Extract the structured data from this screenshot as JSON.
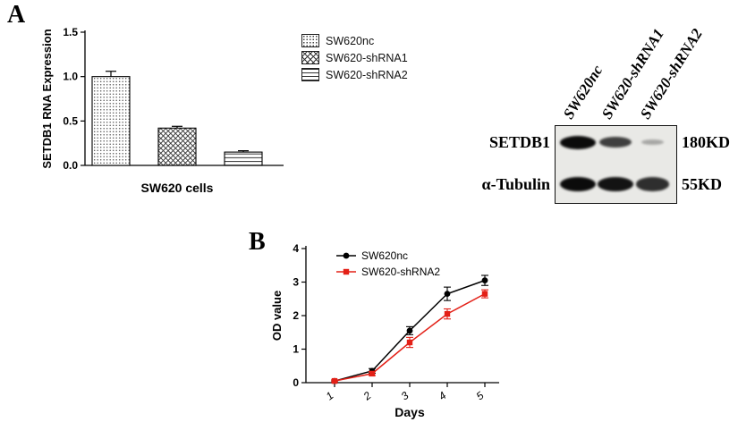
{
  "panels": {
    "a_label": "A",
    "b_label": "B"
  },
  "chart_data": [
    {
      "type": "bar",
      "title": "",
      "ylabel": "SETDB1 RNA Expression",
      "xlabel": "SW620 cells",
      "ylim": [
        0,
        1.5
      ],
      "yticks": [
        0,
        0.5,
        1,
        1.5
      ],
      "categories": [
        "SW620nc",
        "SW620-shRNA1",
        "SW620-shRNA2"
      ],
      "values": [
        1.0,
        0.42,
        0.15
      ],
      "errors": [
        0.06,
        0.02,
        0.015
      ],
      "bar_patterns": [
        "dots",
        "crosshatch",
        "horizontal-lines"
      ],
      "legend": [
        "SW620nc",
        "SW620-shRNA1",
        "SW620-shRNA2"
      ],
      "legend_position": "right",
      "grid": false
    },
    {
      "type": "line",
      "title": "",
      "ylabel": "OD value",
      "xlabel": "Days",
      "x": [
        1,
        2,
        3,
        4,
        5
      ],
      "ylim": [
        0,
        4
      ],
      "yticks": [
        0,
        1,
        2,
        3,
        4
      ],
      "series": [
        {
          "name": "SW620nc",
          "color": "#000000",
          "marker": "circle",
          "values": [
            0.05,
            0.35,
            1.55,
            2.65,
            3.05
          ],
          "errors": [
            0.03,
            0.07,
            0.12,
            0.2,
            0.15
          ]
        },
        {
          "name": "SW620-shRNA2",
          "color": "#e32017",
          "marker": "square",
          "values": [
            0.05,
            0.27,
            1.2,
            2.05,
            2.65
          ],
          "errors": [
            0.03,
            0.06,
            0.15,
            0.15,
            0.12
          ]
        }
      ],
      "legend_position": "top-left",
      "grid": false
    }
  ],
  "blot": {
    "lane_labels": [
      "SW620nc",
      "SW620-shRNA1",
      "SW620-shRNA2"
    ],
    "rows": [
      {
        "label": "SETDB1",
        "size": "180KD",
        "band_intensities": [
          1.0,
          0.7,
          0.12
        ]
      },
      {
        "label": "α-Tubulin",
        "size": "55KD",
        "band_intensities": [
          1.0,
          0.95,
          0.8
        ]
      }
    ]
  }
}
